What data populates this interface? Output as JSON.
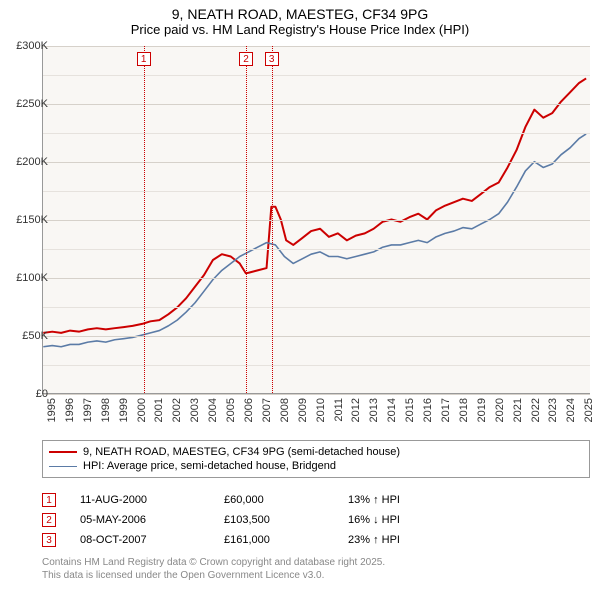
{
  "title": {
    "line1": "9, NEATH ROAD, MAESTEG, CF34 9PG",
    "line2": "Price paid vs. HM Land Registry's House Price Index (HPI)"
  },
  "chart": {
    "type": "line",
    "background_color": "#f9f7f4",
    "grid_color_major": "#d6d1ca",
    "grid_color_minor": "#e6e2dd",
    "axis_color": "#999999",
    "x_range": [
      1995,
      2025.6
    ],
    "y_range": [
      0,
      300000
    ],
    "y_ticks": [
      0,
      50000,
      100000,
      150000,
      200000,
      250000,
      300000
    ],
    "y_tick_labels": [
      "£0",
      "£50K",
      "£100K",
      "£150K",
      "£200K",
      "£250K",
      "£300K"
    ],
    "x_ticks": [
      1995,
      1996,
      1997,
      1998,
      1999,
      2000,
      2001,
      2002,
      2003,
      2004,
      2005,
      2006,
      2007,
      2008,
      2009,
      2010,
      2011,
      2012,
      2013,
      2014,
      2015,
      2016,
      2017,
      2018,
      2019,
      2020,
      2021,
      2022,
      2023,
      2024,
      2025
    ],
    "label_fontsize": 11,
    "series": [
      {
        "key": "price_paid",
        "label": "9, NEATH ROAD, MAESTEG, CF34 9PG (semi-detached house)",
        "color": "#cc0000",
        "width": 2,
        "data": [
          [
            1995.0,
            52000
          ],
          [
            1995.5,
            53000
          ],
          [
            1996.0,
            52000
          ],
          [
            1996.5,
            54000
          ],
          [
            1997.0,
            53000
          ],
          [
            1997.5,
            55000
          ],
          [
            1998.0,
            56000
          ],
          [
            1998.5,
            55000
          ],
          [
            1999.0,
            56000
          ],
          [
            1999.5,
            57000
          ],
          [
            2000.0,
            58000
          ],
          [
            2000.6,
            60000
          ],
          [
            2001.0,
            62000
          ],
          [
            2001.5,
            63000
          ],
          [
            2002.0,
            68000
          ],
          [
            2002.5,
            74000
          ],
          [
            2003.0,
            82000
          ],
          [
            2003.5,
            92000
          ],
          [
            2004.0,
            102000
          ],
          [
            2004.5,
            115000
          ],
          [
            2005.0,
            120000
          ],
          [
            2005.5,
            118000
          ],
          [
            2006.0,
            112000
          ],
          [
            2006.34,
            103500
          ],
          [
            2006.5,
            104000
          ],
          [
            2007.0,
            106000
          ],
          [
            2007.5,
            108000
          ],
          [
            2007.77,
            161000
          ],
          [
            2008.0,
            161000
          ],
          [
            2008.3,
            150000
          ],
          [
            2008.6,
            132000
          ],
          [
            2009.0,
            128000
          ],
          [
            2009.5,
            134000
          ],
          [
            2010.0,
            140000
          ],
          [
            2010.5,
            142000
          ],
          [
            2011.0,
            135000
          ],
          [
            2011.5,
            138000
          ],
          [
            2012.0,
            132000
          ],
          [
            2012.5,
            136000
          ],
          [
            2013.0,
            138000
          ],
          [
            2013.5,
            142000
          ],
          [
            2014.0,
            148000
          ],
          [
            2014.5,
            150000
          ],
          [
            2015.0,
            148000
          ],
          [
            2015.5,
            152000
          ],
          [
            2016.0,
            155000
          ],
          [
            2016.5,
            150000
          ],
          [
            2017.0,
            158000
          ],
          [
            2017.5,
            162000
          ],
          [
            2018.0,
            165000
          ],
          [
            2018.5,
            168000
          ],
          [
            2019.0,
            166000
          ],
          [
            2019.5,
            172000
          ],
          [
            2020.0,
            178000
          ],
          [
            2020.5,
            182000
          ],
          [
            2021.0,
            195000
          ],
          [
            2021.5,
            210000
          ],
          [
            2022.0,
            230000
          ],
          [
            2022.5,
            245000
          ],
          [
            2023.0,
            238000
          ],
          [
            2023.5,
            242000
          ],
          [
            2024.0,
            252000
          ],
          [
            2024.5,
            260000
          ],
          [
            2025.0,
            268000
          ],
          [
            2025.4,
            272000
          ]
        ]
      },
      {
        "key": "hpi",
        "label": "HPI: Average price, semi-detached house, Bridgend",
        "color": "#5b7ba6",
        "width": 1.6,
        "data": [
          [
            1995.0,
            40000
          ],
          [
            1995.5,
            41000
          ],
          [
            1996.0,
            40000
          ],
          [
            1996.5,
            42000
          ],
          [
            1997.0,
            42000
          ],
          [
            1997.5,
            44000
          ],
          [
            1998.0,
            45000
          ],
          [
            1998.5,
            44000
          ],
          [
            1999.0,
            46000
          ],
          [
            1999.5,
            47000
          ],
          [
            2000.0,
            48000
          ],
          [
            2000.5,
            50000
          ],
          [
            2001.0,
            52000
          ],
          [
            2001.5,
            54000
          ],
          [
            2002.0,
            58000
          ],
          [
            2002.5,
            63000
          ],
          [
            2003.0,
            70000
          ],
          [
            2003.5,
            78000
          ],
          [
            2004.0,
            88000
          ],
          [
            2004.5,
            98000
          ],
          [
            2005.0,
            106000
          ],
          [
            2005.5,
            112000
          ],
          [
            2006.0,
            118000
          ],
          [
            2006.5,
            122000
          ],
          [
            2007.0,
            126000
          ],
          [
            2007.5,
            130000
          ],
          [
            2008.0,
            128000
          ],
          [
            2008.5,
            118000
          ],
          [
            2009.0,
            112000
          ],
          [
            2009.5,
            116000
          ],
          [
            2010.0,
            120000
          ],
          [
            2010.5,
            122000
          ],
          [
            2011.0,
            118000
          ],
          [
            2011.5,
            118000
          ],
          [
            2012.0,
            116000
          ],
          [
            2012.5,
            118000
          ],
          [
            2013.0,
            120000
          ],
          [
            2013.5,
            122000
          ],
          [
            2014.0,
            126000
          ],
          [
            2014.5,
            128000
          ],
          [
            2015.0,
            128000
          ],
          [
            2015.5,
            130000
          ],
          [
            2016.0,
            132000
          ],
          [
            2016.5,
            130000
          ],
          [
            2017.0,
            135000
          ],
          [
            2017.5,
            138000
          ],
          [
            2018.0,
            140000
          ],
          [
            2018.5,
            143000
          ],
          [
            2019.0,
            142000
          ],
          [
            2019.5,
            146000
          ],
          [
            2020.0,
            150000
          ],
          [
            2020.5,
            155000
          ],
          [
            2021.0,
            165000
          ],
          [
            2021.5,
            178000
          ],
          [
            2022.0,
            192000
          ],
          [
            2022.5,
            200000
          ],
          [
            2023.0,
            195000
          ],
          [
            2023.5,
            198000
          ],
          [
            2024.0,
            206000
          ],
          [
            2024.5,
            212000
          ],
          [
            2025.0,
            220000
          ],
          [
            2025.4,
            224000
          ]
        ]
      }
    ],
    "markers": [
      {
        "n": "1",
        "x": 2000.62
      },
      {
        "n": "2",
        "x": 2006.34
      },
      {
        "n": "3",
        "x": 2007.77
      }
    ],
    "marker_color": "#cc0000",
    "marker_box_bg": "#ffffff"
  },
  "events": [
    {
      "n": "1",
      "date": "11-AUG-2000",
      "price": "£60,000",
      "delta": "13% ↑ HPI"
    },
    {
      "n": "2",
      "date": "05-MAY-2006",
      "price": "£103,500",
      "delta": "16% ↓ HPI"
    },
    {
      "n": "3",
      "date": "08-OCT-2007",
      "price": "£161,000",
      "delta": "23% ↑ HPI"
    }
  ],
  "footer": {
    "line1": "Contains HM Land Registry data © Crown copyright and database right 2025.",
    "line2": "This data is licensed under the Open Government Licence v3.0."
  }
}
